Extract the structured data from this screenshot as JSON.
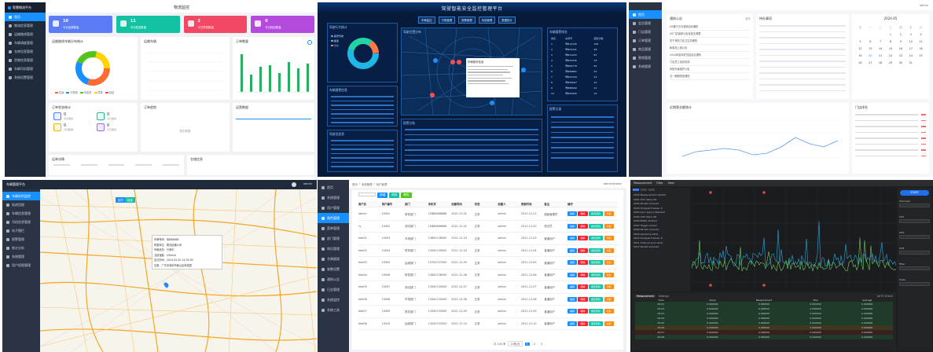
{
  "tile1": {
    "logo": "智慧物流平台",
    "page_title": "物流监控",
    "nav": [
      "首页",
      "物流信息管理",
      "运输路线管理",
      "车辆调度管理",
      "仓库信息管理",
      "货物信息管理",
      "车辆司机管理",
      "系统设置管理"
    ],
    "stats": [
      {
        "num": "10",
        "label": "今日运单数量",
        "color": "#5b7cf5"
      },
      {
        "num": "11",
        "label": "今日配送数量",
        "color": "#13c2a3"
      },
      {
        "num": "2",
        "label": "今日异常数量",
        "color": "#f04865"
      },
      {
        "num": "0",
        "label": "今日延迟数量",
        "color": "#b54bdd"
      }
    ],
    "card_titles": [
      "运输路线车辆分布统计",
      "运输车辆",
      "订单数量",
      "订单状态统计",
      "订单趋势",
      "运营数据",
      "运单详情",
      "仓储信息"
    ],
    "donut_legend": [
      "在途",
      "已签收",
      "待发货",
      "异常",
      "延迟"
    ],
    "mini_stats": [
      {
        "num": "0",
        "label": "今日收货"
      },
      {
        "num": "0",
        "label": "今日发货"
      },
      {
        "num": "0",
        "label": "今日拒收"
      },
      {
        "num": "0",
        "label": "今日退货"
      }
    ],
    "empty_text": "暂无数据"
  },
  "tile2": {
    "title": "驾驶智能安全监控管理平台",
    "tabs": [
      "车辆监控",
      "行程管理",
      "报警管理",
      "系统管理",
      "数据统计"
    ],
    "panel_titles": [
      "驾驶行为统计",
      "驾驶位置分布",
      "车辆报警信息",
      "车辆报警排名",
      "报警分析",
      "驾驶员信息",
      "报警记录"
    ],
    "popup_title": "车辆基本信息",
    "rank_header": [
      "排名",
      "车牌号",
      "报警次数"
    ],
    "rank_rows": [
      [
        "1",
        "粤B12345",
        "105"
      ],
      [
        "2",
        "粤B54321",
        "98"
      ],
      [
        "3",
        "粤B11223",
        "87"
      ],
      [
        "4",
        "粤B33445",
        "76"
      ],
      [
        "5",
        "粤B66778",
        "65"
      ],
      [
        "6",
        "粤B99887",
        "54"
      ],
      [
        "7",
        "粤B22334",
        "43"
      ],
      [
        "8",
        "粤B55667",
        "32"
      ],
      [
        "9",
        "粤B88990",
        "21"
      ],
      [
        "10",
        "粤B44556",
        "10"
      ]
    ],
    "legend": [
      "疲劳驾驶",
      "超速",
      "分心"
    ]
  },
  "tile3": {
    "nav": [
      "首页",
      "会员管理",
      "门店管理",
      "订单管理",
      "商品管理",
      "营销管理",
      "系统管理"
    ],
    "user": "admin",
    "notice_title": "通知公告",
    "notice_more": "更多",
    "notices": [
      "XX餐厅五月营销活动通知",
      "XX门店装修公告及营业调整",
      "关于规范门店卫生的通知",
      "新菜品上线公告",
      "2024年度年终总结会议通知",
      "门店员工培训安排",
      "系统升级维护公告",
      "五一假期排班通知"
    ],
    "todo_title": "待办事项",
    "todo_header": [
      "事项",
      "状态",
      "时间"
    ],
    "calendar_title": "2024-05",
    "weekdays": [
      "日",
      "一",
      "二",
      "三",
      "四",
      "五",
      "六"
    ],
    "calendar_days": [
      "",
      "",
      "",
      "1",
      "2",
      "3",
      "4",
      "5",
      "6",
      "7",
      "8",
      "9",
      "10",
      "11",
      "12",
      "13",
      "14",
      "15",
      "16",
      "17",
      "18",
      "19",
      "20",
      "21",
      "22",
      "23",
      "24",
      "25",
      "26",
      "27",
      "28",
      "29",
      "30",
      "31",
      "",
      ""
    ],
    "chart_title": "近期营业额统计",
    "list_title": "门店排名"
  },
  "tile4": {
    "title": "车辆管理平台",
    "user": "admin",
    "nav": [
      "车辆实时监控",
      "轨迹回放",
      "车辆信息管理",
      "司机信息管理",
      "电子围栏",
      "报警管理",
      "统计分析",
      "系统管理",
      "用户权限管理"
    ],
    "popup_lines": [
      "车牌号码：粤B88888",
      "所属单位：物流运输公司",
      "车辆状态：行驶中",
      "当前速度：45km/h",
      "定位时间：2024-05-20 14:32:05",
      "位置：广东省深圳市南山区科技园"
    ],
    "map_btns": [
      "实时",
      "轨迹"
    ]
  },
  "tile5": {
    "nav": [
      "首页",
      "系统管理",
      "用户管理",
      "角色管理",
      "菜单管理",
      "部门管理",
      "岗位管理",
      "字典管理",
      "参数设置",
      "通知公告",
      "日志管理",
      "系统监控",
      "系统工具"
    ],
    "breadcrumb": [
      "首页",
      "系统管理",
      "用户管理"
    ],
    "user": "Administrator",
    "toolbar": {
      "add": "新增",
      "edit": "修改",
      "delete": "删除"
    },
    "headers": [
      "用户名",
      "用户编号",
      "部门",
      "手机号",
      "创建时间",
      "状态",
      "创建人",
      "更新时间",
      "备注",
      "操作"
    ],
    "rows": [
      [
        "admin",
        "10001",
        "研发部门",
        "15888888888",
        "2021-12-01",
        "正常",
        "admin",
        "2021-12-01",
        "超级管理员"
      ],
      [
        "ry",
        "10002",
        "测试部门",
        "15666666666",
        "2021-12-02",
        "正常",
        "admin",
        "2021-12-02",
        "测试员"
      ],
      [
        "test01",
        "10003",
        "市场部门",
        "13800138000",
        "2021-12-03",
        "正常",
        "admin",
        "2021-12-03",
        "普通用户"
      ],
      [
        "test02",
        "10004",
        "财务部门",
        "13900139000",
        "2021-12-04",
        "正常",
        "admin",
        "2021-12-04",
        "普通用户"
      ],
      [
        "test03",
        "10005",
        "运维部门",
        "13700137000",
        "2021-12-05",
        "正常",
        "admin",
        "2021-12-05",
        "普通用户"
      ],
      [
        "test04",
        "10006",
        "研发部门",
        "13600136000",
        "2021-12-06",
        "正常",
        "admin",
        "2021-12-06",
        "普通用户"
      ],
      [
        "test05",
        "10007",
        "测试部门",
        "13500135000",
        "2021-12-07",
        "正常",
        "admin",
        "2021-12-07",
        "普通用户"
      ],
      [
        "test06",
        "10008",
        "市场部门",
        "13400134000",
        "2021-12-08",
        "正常",
        "admin",
        "2021-12-08",
        "普通用户"
      ],
      [
        "test07",
        "10009",
        "财务部门",
        "13300133000",
        "2021-12-09",
        "正常",
        "admin",
        "2021-12-09",
        "普通用户"
      ],
      [
        "test08",
        "10010",
        "运维部门",
        "13200132000",
        "2021-12-10",
        "正常",
        "admin",
        "2021-12-10",
        "普通用户"
      ]
    ],
    "actions": [
      "编辑",
      "删除",
      "重置密码",
      "分配"
    ],
    "pagination": "共 100 条",
    "page_size": "10条/页"
  },
  "tile6": {
    "tabs": [
      "Measurement",
      "Filter",
      "View"
    ],
    "run_btn": "START",
    "log_lines": [
      "0000 Measurement started",
      "0001 CH1 Value OK",
      "0002 Packet received",
      "0003 Dropped frames: 0",
      "0004 Sync signal detected",
      "0005 CH2 Value OK",
      "0006 Buffer flushed",
      "0007 Trigger armed",
      "0008 Packet received",
      "0009 Sampling 1kHz",
      "0010 Dropped frames: 0",
      "0011 Channel scan done",
      "0012 Packet received"
    ],
    "bottom_tabs": [
      "Measurement",
      "Settings"
    ],
    "table_header": [
      "Time",
      "Value",
      "Measurement",
      "Max",
      "Average"
    ],
    "table_rows": [
      [
        "00:01",
        "0.000000",
        "0.000000",
        "0.000000",
        "0.000000"
      ],
      [
        "00:02",
        "0.000000",
        "0.000000",
        "0.000000",
        "0.000000"
      ],
      [
        "00:03",
        "0.000000",
        "0.000000",
        "0.000000",
        "0.000000"
      ],
      [
        "00:04",
        "0.000000",
        "0.000000",
        "0.000000",
        "0.000000"
      ],
      [
        "00:05",
        "0.000000",
        "0.000000",
        "0.000000",
        "0.000000"
      ],
      [
        "00:06",
        "0.000000",
        "0.000000",
        "0.000000",
        "0.000000"
      ],
      [
        "00:07",
        "0.000000",
        "0.000000",
        "0.000000",
        "0.000000"
      ],
      [
        "00:08",
        "0.000000",
        "0.000000",
        "0.000000",
        "0.000000"
      ]
    ],
    "right_labels": [
      "Channels",
      "CH1",
      "CH2",
      "CH3",
      "Filter",
      "Scale"
    ],
    "status": "AUTO SCALE"
  }
}
